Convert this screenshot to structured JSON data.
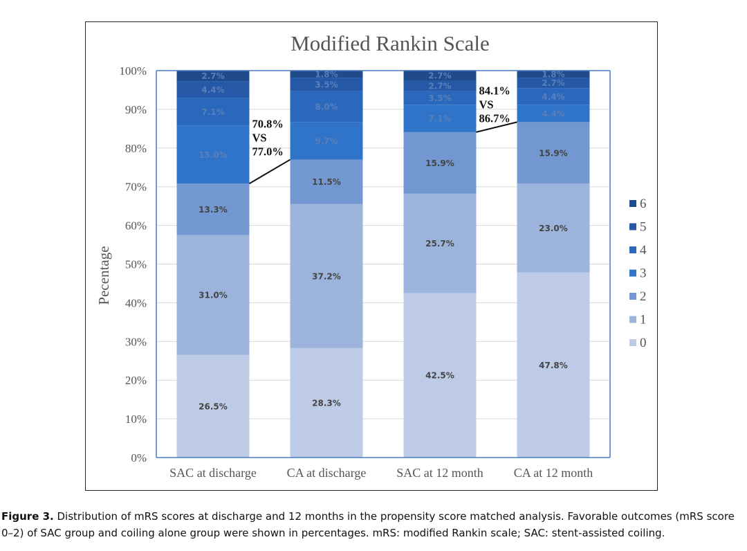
{
  "chart_data": {
    "type": "bar",
    "stacked": true,
    "title": "Modified Rankin Scale",
    "ylabel": "Pecentage",
    "xlabel": "",
    "ylim": [
      0,
      100
    ],
    "yticks": [
      "0%",
      "10%",
      "20%",
      "30%",
      "40%",
      "50%",
      "60%",
      "70%",
      "80%",
      "90%",
      "100%"
    ],
    "categories": [
      "SAC at discharge",
      "CA at discharge",
      "SAC at 12 month",
      "CA at 12 month"
    ],
    "series": [
      {
        "name": "0",
        "color": "#bdcbe6",
        "values": [
          26.5,
          28.3,
          42.5,
          47.8
        ],
        "labels": [
          "26.5%",
          "28.3%",
          "42.5%",
          "47.8%"
        ]
      },
      {
        "name": "1",
        "color": "#9cb4dc",
        "values": [
          31.0,
          37.2,
          25.7,
          23.0
        ],
        "labels": [
          "31.0%",
          "37.2%",
          "25.7%",
          "23.0%"
        ]
      },
      {
        "name": "2",
        "color": "#7297d1",
        "values": [
          13.3,
          11.5,
          15.9,
          15.9
        ],
        "labels": [
          "13.3%",
          "11.5%",
          "15.9%",
          "15.9%"
        ]
      },
      {
        "name": "3",
        "color": "#2f74c9",
        "values": [
          15.0,
          9.7,
          7.1,
          4.4
        ],
        "labels": [
          "15.0%",
          "9.7%",
          "7.1%",
          "4.4%"
        ]
      },
      {
        "name": "4",
        "color": "#2a68bd",
        "values": [
          7.1,
          8.0,
          3.5,
          4.4
        ],
        "labels": [
          "7.1%",
          "8.0%",
          "3.5%",
          "4.4%"
        ]
      },
      {
        "name": "5",
        "color": "#2559a8",
        "values": [
          4.4,
          3.5,
          2.7,
          2.7
        ],
        "labels": [
          "4.4%",
          "3.5%",
          "2.7%",
          "2.7%"
        ]
      },
      {
        "name": "6",
        "color": "#1f4a8c",
        "values": [
          2.7,
          1.8,
          2.7,
          1.8
        ],
        "labels": [
          "2.7%",
          "1.8%",
          "2.7%",
          "1.8%"
        ]
      }
    ],
    "legend_order": [
      "6",
      "5",
      "4",
      "3",
      "2",
      "1",
      "0"
    ],
    "legend_position": "right",
    "grid": true,
    "annotations": [
      {
        "text_lines": [
          "70.8%",
          "VS",
          "77.0%"
        ],
        "from_category": 0,
        "to_category": 1,
        "from_value": 70.8,
        "to_value": 77.0
      },
      {
        "text_lines": [
          "84.1%",
          "VS",
          "86.7%"
        ],
        "from_category": 2,
        "to_category": 3,
        "from_value": 84.1,
        "to_value": 86.7
      }
    ]
  },
  "caption": {
    "label": "Figure 3.",
    "text": " Distribution of mRS scores at discharge and 12 months in the propensity score matched analysis. Favorable outcomes (mRS score 0–2) of SAC group and coiling alone group were shown in percentages. mRS: modified Rankin scale; SAC: stent-assisted coiling."
  }
}
